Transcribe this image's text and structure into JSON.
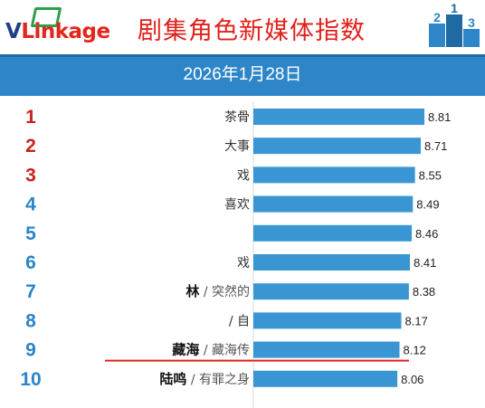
{
  "brand": {
    "logo_v": "V",
    "logo_rest": "Linkage"
  },
  "header": {
    "title": "剧集角色新媒体指数",
    "date": "2026年1月28日"
  },
  "colors": {
    "bar": "#3a95d3",
    "rank_top": "#c8231c",
    "rank_rest": "#2a84c6",
    "underline": "#e0201a"
  },
  "chart_data": {
    "type": "bar",
    "orientation": "horizontal",
    "title": "剧集角色新媒体指数",
    "date": "2026年1月28日",
    "ranks": [
      "1",
      "2",
      "3",
      "4",
      "5",
      "6",
      "7",
      "8",
      "9",
      "10"
    ],
    "categories": [
      "茶骨",
      "大事",
      "戏",
      "喜欢",
      "",
      "戏",
      "林 / 突然的",
      "/ 自",
      "藏海 / 藏海传",
      "陆鸣 / 有罪之身"
    ],
    "values": [
      8.81,
      8.71,
      8.55,
      8.49,
      8.46,
      8.41,
      8.38,
      8.17,
      8.12,
      8.06
    ],
    "xlim": [
      0,
      8.81
    ],
    "highlight_index": 8
  }
}
